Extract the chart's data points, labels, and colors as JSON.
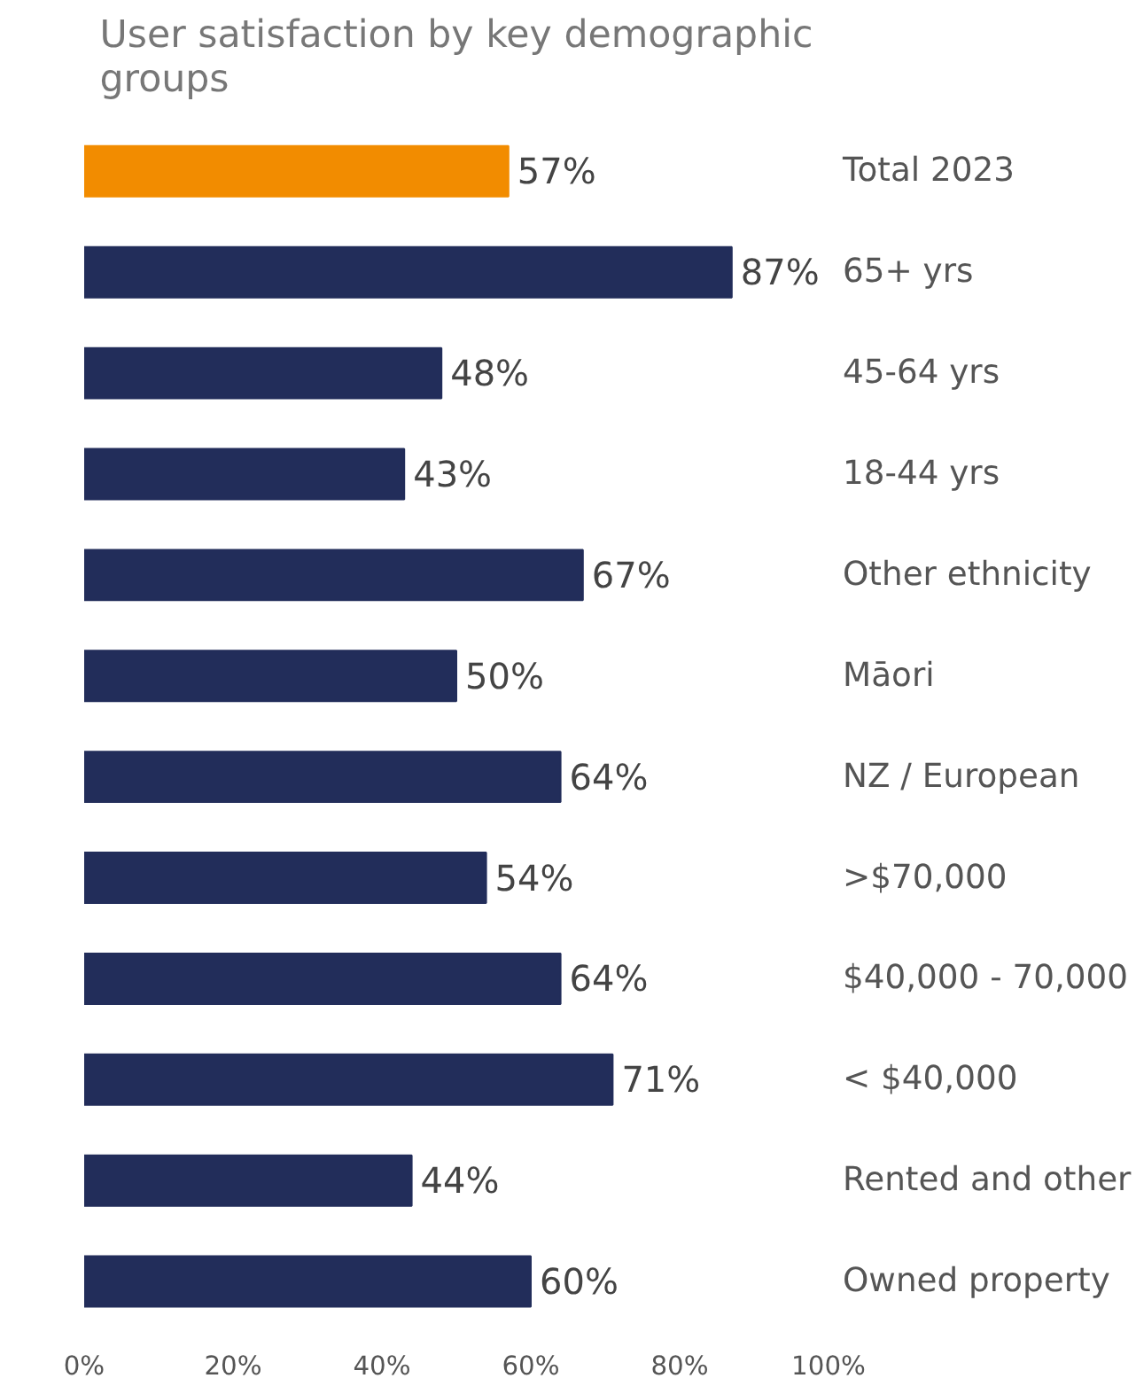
{
  "chart_data": {
    "type": "bar",
    "orientation": "horizontal",
    "title": "User satisfaction by key demographic groups",
    "categories": [
      "Total 2023",
      "65+ yrs",
      "45-64 yrs",
      "18-44 yrs",
      "Other ethnicity",
      "Māori",
      "NZ / European",
      ">$70,000",
      "$40,000 - 70,000",
      "< $40,000",
      "Rented and other",
      "Owned property"
    ],
    "values": [
      57,
      87,
      48,
      43,
      67,
      50,
      64,
      54,
      64,
      71,
      44,
      60
    ],
    "value_labels": [
      "57%",
      "87%",
      "48%",
      "43%",
      "67%",
      "50%",
      "64%",
      "54%",
      "64%",
      "71%",
      "44%",
      "60%"
    ],
    "colors": [
      "#f28c00",
      "#222d5a",
      "#222d5a",
      "#222d5a",
      "#222d5a",
      "#222d5a",
      "#222d5a",
      "#222d5a",
      "#222d5a",
      "#222d5a",
      "#222d5a",
      "#222d5a"
    ],
    "xlim": [
      0,
      100
    ],
    "xticks": [
      {
        "value": 0,
        "label": "0%"
      },
      {
        "value": 20,
        "label": "20%"
      },
      {
        "value": 40,
        "label": "40%"
      },
      {
        "value": 60,
        "label": "60%"
      },
      {
        "value": 80,
        "label": "80%"
      },
      {
        "value": 100,
        "label": "100%"
      }
    ],
    "grid": false
  }
}
